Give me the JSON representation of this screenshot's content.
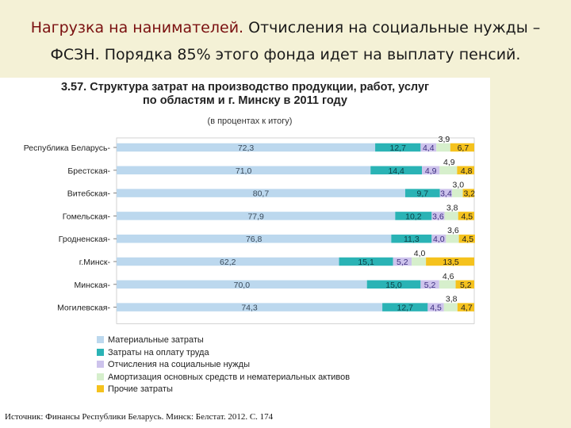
{
  "slide": {
    "title_part1": "Нагрузка на нанимателей.",
    "title_part2": " Отчисления на социальные нужды – ФСЗН. Порядка 85% этого фонда идет на выплату пенсий."
  },
  "figure": {
    "title_line1": "3.57. Структура затрат на производство продукции, работ, услуг",
    "title_line2": "по областям и г. Минску в 2011 году",
    "subtitle": "(в процентах к итогу)"
  },
  "source": "Источник: Финансы Республики Беларусь. Минск: Белстат. 2012. С. 174",
  "colors": {
    "material": "#bcd8ee",
    "labor": "#2ab3b5",
    "social": "#cdc3ec",
    "depreciation": "#d6efcc",
    "other": "#f5c21d"
  },
  "chart_data": {
    "type": "bar",
    "stacked": true,
    "orientation": "horizontal",
    "title": "3.57. Структура затрат на производство продукции, работ, услуг по областям и г. Минску в 2011 году",
    "subtitle": "(в процентах к итогу)",
    "xlim": [
      0,
      100
    ],
    "legend_position": "bottom",
    "categories": [
      "Республика Беларусь",
      "Брестская",
      "Витебская",
      "Гомельская",
      "Гродненская",
      "г.Минск",
      "Минская",
      "Могилевская"
    ],
    "series": [
      {
        "name": "Материальные затраты",
        "key": "material",
        "values": [
          72.3,
          71.0,
          80.7,
          77.9,
          76.8,
          62.2,
          70.0,
          74.3
        ],
        "labels": [
          "72,3",
          "71,0",
          "80,7",
          "77,9",
          "76,8",
          "62,2",
          "70,0",
          "74,3"
        ]
      },
      {
        "name": "Затраты на оплату труда",
        "key": "labor",
        "values": [
          12.7,
          14.4,
          9.7,
          10.2,
          11.3,
          15.1,
          15.0,
          12.7
        ],
        "labels": [
          "12,7",
          "14,4",
          "9,7",
          "10,2",
          "11,3",
          "15,1",
          "15,0",
          "12,7"
        ]
      },
      {
        "name": "Отчисления на социальные нужды",
        "key": "social",
        "values": [
          4.4,
          4.9,
          3.4,
          3.6,
          4.0,
          5.2,
          5.2,
          4.5
        ],
        "labels": [
          "4,4",
          "4,9",
          "3,4",
          "3,6",
          "4,0",
          "5,2",
          "5,2",
          "4,5"
        ]
      },
      {
        "name": "Амортизация основных средств и нематериальных активов",
        "key": "depreciation",
        "values": [
          3.9,
          4.9,
          3.0,
          3.8,
          3.6,
          4.0,
          4.6,
          3.8
        ],
        "labels": [
          "3,9",
          "4,9",
          "3,0",
          "3,8",
          "3,6",
          "4,0",
          "4,6",
          "3,8"
        ]
      },
      {
        "name": "Прочие затраты",
        "key": "other",
        "values": [
          6.7,
          4.8,
          3.2,
          4.5,
          4.5,
          13.5,
          5.2,
          4.7
        ],
        "labels": [
          "6,7",
          "4,8",
          "3,2",
          "4,5",
          "4,5",
          "13,5",
          "5,2",
          "4,7"
        ]
      }
    ]
  }
}
